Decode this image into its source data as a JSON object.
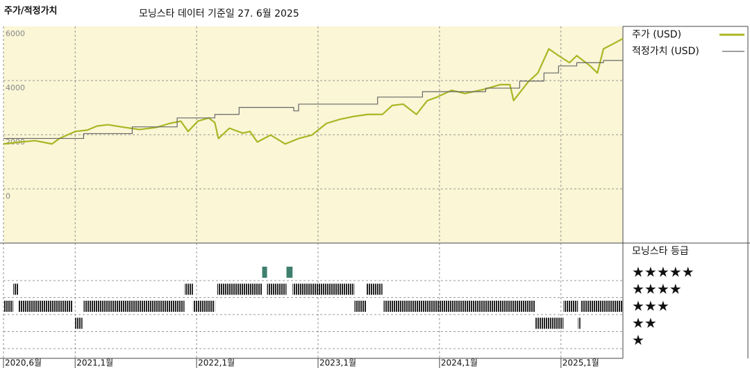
{
  "chart_data": {
    "type": "line",
    "title": "주가/적정가치",
    "subtitle": "모닝스타 데이터 기준일 27. 6월 2025",
    "xlim": [
      2020.41,
      2025.51
    ],
    "xticks": [
      {
        "value": 2020.41,
        "label": "2020,6월"
      },
      {
        "value": 2021,
        "label": "2021,1월"
      },
      {
        "value": 2022,
        "label": "2022,1월"
      },
      {
        "value": 2023,
        "label": "2023,1월"
      },
      {
        "value": 2024,
        "label": "2024,1월"
      },
      {
        "value": 2025,
        "label": "2025,1월"
      }
    ],
    "ylim": [
      -2000,
      6000
    ],
    "yticks": [
      0,
      2000,
      4000,
      6000
    ],
    "grid": true,
    "series": [
      {
        "name": "주가 (USD)",
        "color": "#a9b623",
        "step": false,
        "x": [
          2020.41,
          2020.55,
          2020.67,
          2020.81,
          2020.87,
          2021.0,
          2021.1,
          2021.18,
          2021.27,
          2021.38,
          2021.53,
          2021.67,
          2021.78,
          2021.87,
          2021.93,
          2022.01,
          2022.1,
          2022.15,
          2022.18,
          2022.27,
          2022.38,
          2022.44,
          2022.5,
          2022.61,
          2022.73,
          2022.84,
          2022.95,
          2023.07,
          2023.18,
          2023.3,
          2023.41,
          2023.53,
          2023.61,
          2023.7,
          2023.81,
          2023.9,
          2023.98,
          2024.1,
          2024.21,
          2024.38,
          2024.5,
          2024.58,
          2024.61,
          2024.73,
          2024.81,
          2024.9,
          2024.98,
          2025.07,
          2025.13,
          2025.24,
          2025.3,
          2025.35,
          2025.44,
          2025.51
        ],
        "values": [
          1660,
          1730,
          1780,
          1660,
          1860,
          2120,
          2170,
          2320,
          2370,
          2290,
          2190,
          2270,
          2420,
          2500,
          2120,
          2500,
          2620,
          2450,
          1860,
          2240,
          2060,
          2120,
          1730,
          1990,
          1660,
          1860,
          1990,
          2420,
          2570,
          2680,
          2750,
          2750,
          3080,
          3130,
          2750,
          3260,
          3390,
          3640,
          3520,
          3690,
          3850,
          3850,
          3260,
          3950,
          4280,
          5170,
          4920,
          4660,
          4920,
          4540,
          4280,
          5170,
          5380,
          5550
        ]
      },
      {
        "name": "적정가치 (USD)",
        "color": "#666666",
        "step": true,
        "x": [
          2020.41,
          2021.07,
          2021.47,
          2021.84,
          2022.15,
          2022.35,
          2022.8,
          2022.84,
          2023.49,
          2023.86,
          2024.38,
          2024.66,
          2024.86,
          2024.98,
          2025.13,
          2025.35,
          2025.51
        ],
        "values": [
          1860,
          2040,
          2290,
          2620,
          2750,
          3010,
          2880,
          3130,
          3390,
          3590,
          3720,
          3980,
          4280,
          4540,
          4660,
          4740,
          4740
        ]
      }
    ],
    "ratings": {
      "title": "모닝스타 등급",
      "levels": [
        5,
        4,
        3,
        2,
        1
      ],
      "level_labels": [
        "★★★★★",
        "★★★★",
        "★★★",
        "★★",
        "★"
      ],
      "color": "#222222",
      "top_color": "#3f7f6e",
      "periods": [
        {
          "start": 2020.41,
          "end": 2020.49,
          "stars": 3
        },
        {
          "start": 2020.49,
          "end": 2020.53,
          "stars": 4
        },
        {
          "start": 2020.53,
          "end": 2020.98,
          "stars": 3
        },
        {
          "start": 2021.0,
          "end": 2021.06,
          "stars": 2
        },
        {
          "start": 2021.07,
          "end": 2021.9,
          "stars": 3
        },
        {
          "start": 2021.9,
          "end": 2021.97,
          "stars": 4
        },
        {
          "start": 2021.97,
          "end": 2022.15,
          "stars": 3
        },
        {
          "start": 2022.17,
          "end": 2022.54,
          "stars": 4
        },
        {
          "start": 2022.54,
          "end": 2022.58,
          "stars": 5
        },
        {
          "start": 2022.58,
          "end": 2022.74,
          "stars": 4
        },
        {
          "start": 2022.74,
          "end": 2022.79,
          "stars": 5
        },
        {
          "start": 2022.79,
          "end": 2023.3,
          "stars": 4
        },
        {
          "start": 2023.3,
          "end": 2023.4,
          "stars": 3
        },
        {
          "start": 2023.4,
          "end": 2023.53,
          "stars": 4
        },
        {
          "start": 2023.54,
          "end": 2024.79,
          "stars": 3
        },
        {
          "start": 2024.79,
          "end": 2025.02,
          "stars": 2
        },
        {
          "start": 2025.02,
          "end": 2025.14,
          "stars": 3
        },
        {
          "start": 2025.14,
          "end": 2025.16,
          "stars": 2
        },
        {
          "start": 2025.16,
          "end": 2025.51,
          "stars": 3
        }
      ]
    }
  }
}
